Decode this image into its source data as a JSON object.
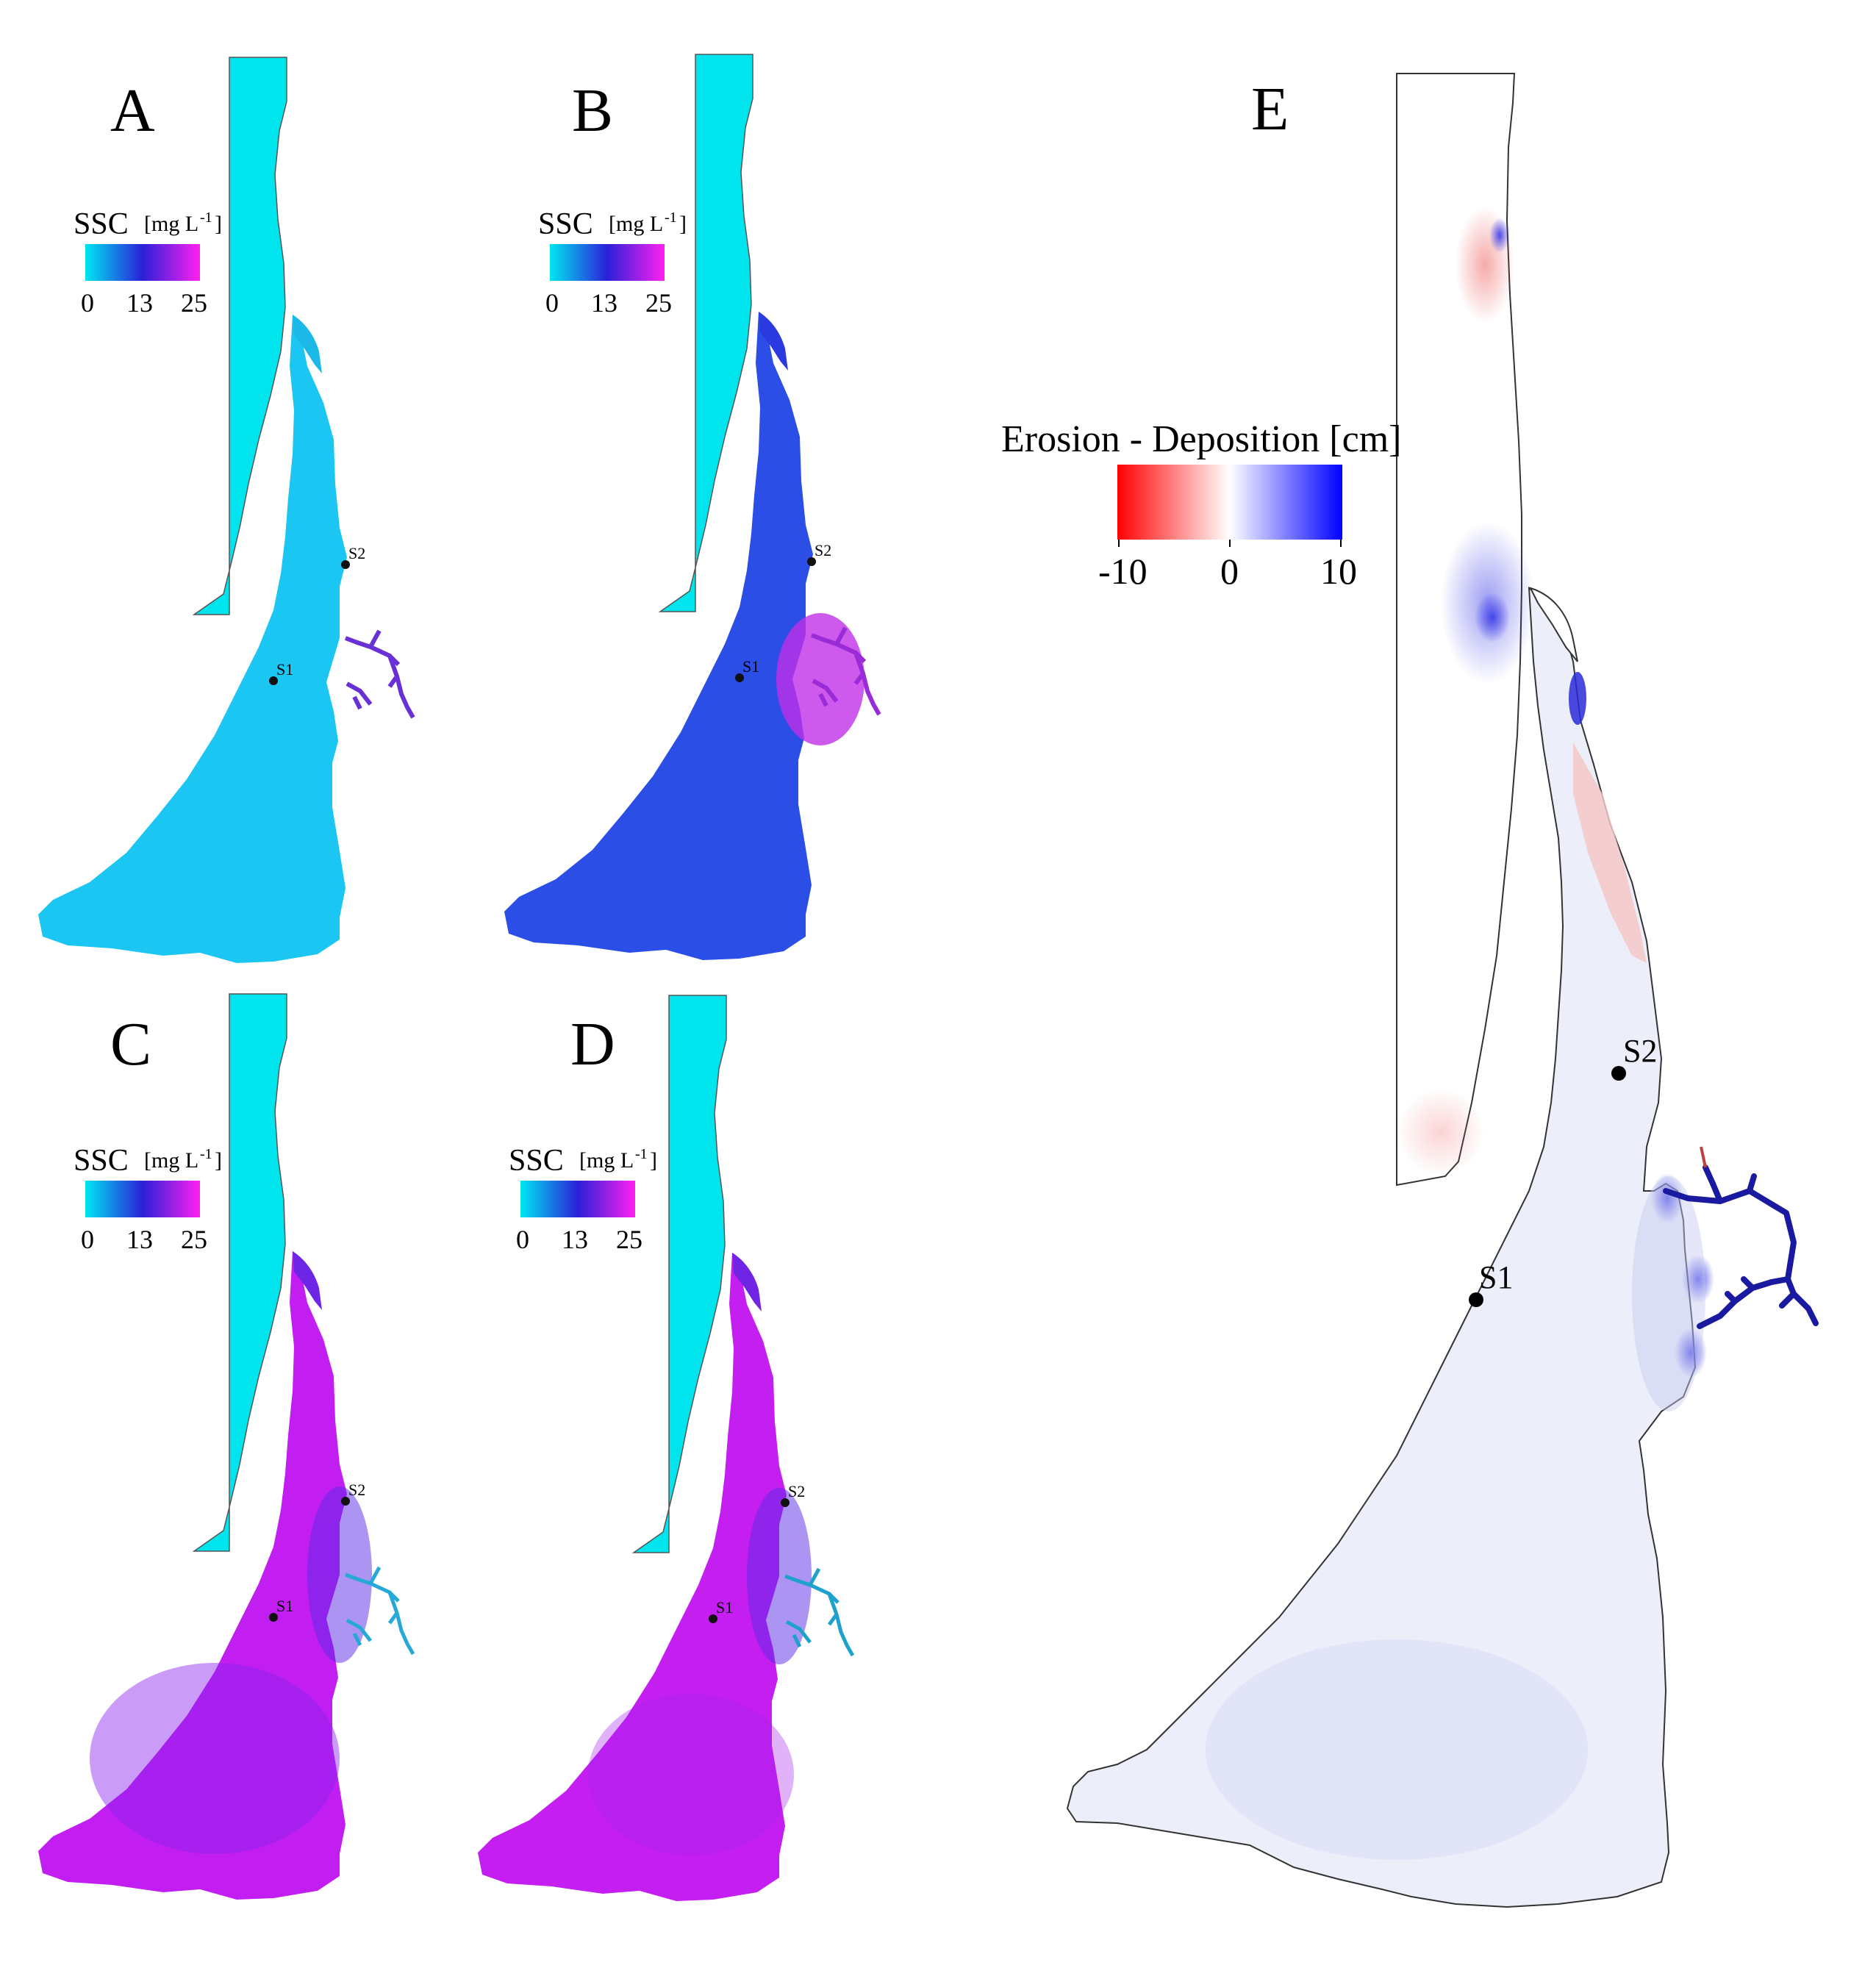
{
  "panels": [
    {
      "id": "A",
      "label": "A",
      "fill_colors": {
        "lagoon": "#1cc6f2",
        "outlet": "#1cb8e8",
        "river": "#6a30d8",
        "sea": "#00e4ee"
      }
    },
    {
      "id": "B",
      "label": "B",
      "fill_colors": {
        "lagoon": "#2a4ee6",
        "outlet": "#2a3ae0",
        "river": "#9a2cd8",
        "sea": "#00e4ee"
      }
    },
    {
      "id": "C",
      "label": "C",
      "fill_colors": {
        "lagoon": "#c21ef2",
        "outlet": "#6e26e6",
        "river": "#26a8d8",
        "sea": "#00e4ee"
      }
    },
    {
      "id": "D",
      "label": "D",
      "fill_colors": {
        "lagoon": "#c41ef0",
        "outlet": "#7024e4",
        "river": "#1ea2cc",
        "sea": "#00e4ee"
      }
    }
  ],
  "ssc_legend": {
    "title": "SSC",
    "unit_open": "[mg L",
    "unit_sup": "-1",
    "unit_close": "]",
    "ticks": [
      "0",
      "13",
      "25"
    ],
    "colors": [
      "#00e6f0",
      "#2a20d8",
      "#ff20f0"
    ]
  },
  "stations": {
    "s1": "S1",
    "s2": "S2"
  },
  "panel_e": {
    "label": "E",
    "legend_title": "Erosion - Deposition [cm]",
    "ticks": [
      "-10",
      "0",
      "10"
    ],
    "colors": [
      "#ff0000",
      "#ffffff",
      "#0000ff"
    ],
    "fills": {
      "lagoon": "#eceef9",
      "sea": "#ffffff",
      "river": "#1a1aa0"
    }
  }
}
